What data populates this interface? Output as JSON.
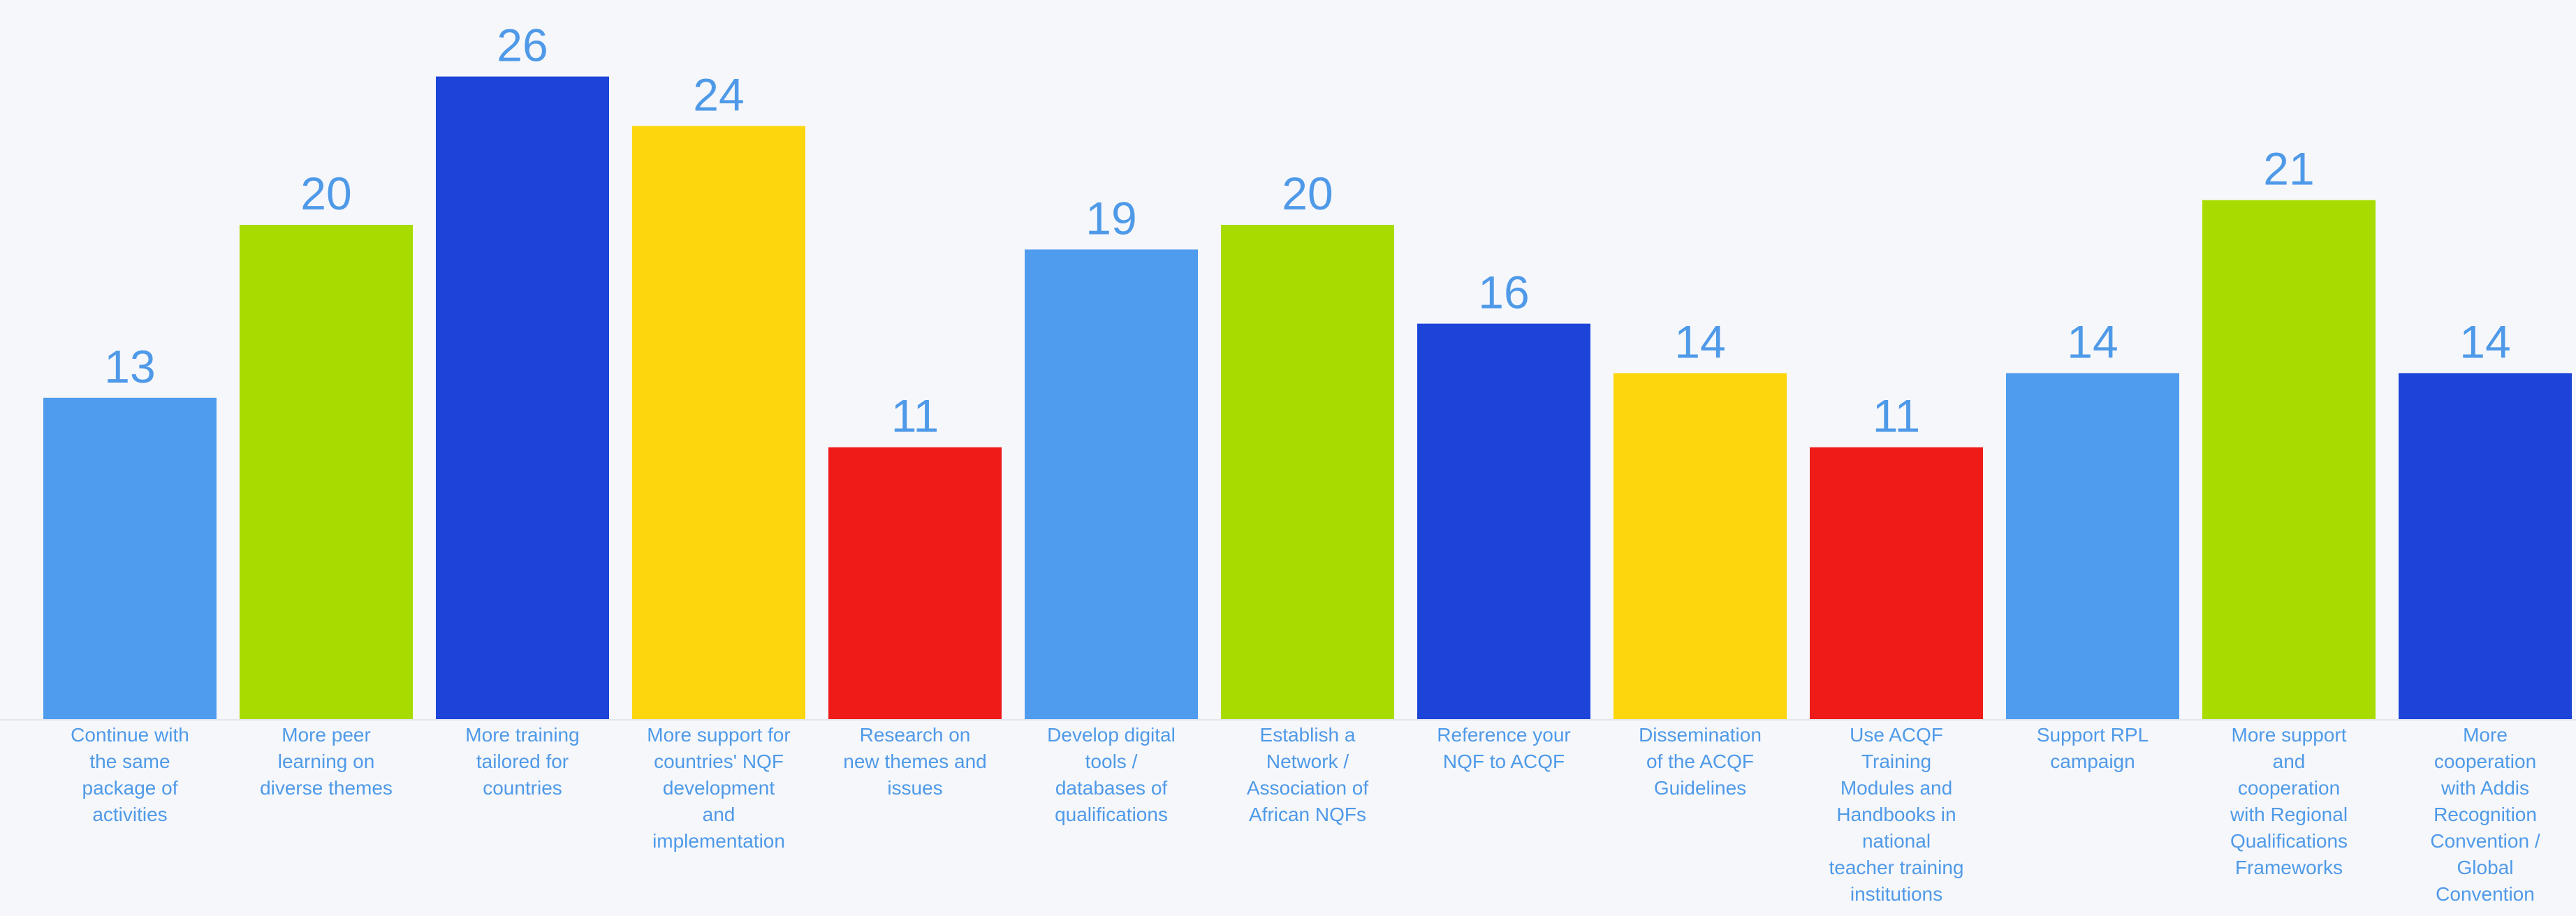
{
  "chart_data": {
    "type": "bar",
    "title": "",
    "xlabel": "",
    "ylabel": "",
    "ylim": [
      0,
      26
    ],
    "grid": false,
    "legend": "none",
    "categories": [
      "Continue with the same package of activities",
      "More peer learning on diverse themes",
      "More training tailored for countries",
      "More support for countries' NQF development and implementation",
      "Research on new themes and issues",
      "Develop digital tools / databases of qualifications",
      "Establish a Network / Association of African NQFs",
      "Reference your NQF to ACQF",
      "Dissemination of the ACQF Guidelines",
      "Use ACQF Training Modules and Handbooks in national teacher training institutions",
      "Support RPL campaign",
      "More support and cooperation with Regional Qualifications Frameworks",
      "More cooperation with Addis Recognition Convention / Global Convention"
    ],
    "category_lines": [
      [
        "Continue with",
        "the same",
        "package of",
        "activities"
      ],
      [
        "More peer",
        "learning on",
        "diverse themes"
      ],
      [
        "More training",
        "tailored for",
        "countries"
      ],
      [
        "More support for",
        "countries' NQF",
        "development",
        "and",
        "implementation"
      ],
      [
        "Research on",
        "new themes and",
        "issues"
      ],
      [
        "Develop digital",
        "tools /",
        "databases of",
        "qualifications"
      ],
      [
        "Establish a",
        "Network /",
        "Association of",
        "African NQFs"
      ],
      [
        "Reference your",
        "NQF to ACQF"
      ],
      [
        "Dissemination",
        "of the ACQF",
        "Guidelines"
      ],
      [
        "Use ACQF",
        "Training",
        "Modules and",
        "Handbooks in",
        "national",
        "teacher training",
        "institutions"
      ],
      [
        "Support RPL",
        "campaign"
      ],
      [
        "More support",
        "and",
        "cooperation",
        "with Regional",
        "Qualifications",
        "Frameworks"
      ],
      [
        "More",
        "cooperation",
        "with Addis",
        "Recognition",
        "Convention /",
        "Global",
        "Convention"
      ]
    ],
    "values": [
      13,
      20,
      26,
      24,
      11,
      19,
      20,
      16,
      14,
      11,
      14,
      21,
      14
    ],
    "colors": [
      "#4f9cef",
      "#a8dc00",
      "#1c44d8",
      "#fdd60e",
      "#ee1b19",
      "#4f9cef",
      "#a8dc00",
      "#1c44d8",
      "#fdd60e",
      "#ee1b19",
      "#4f9cef",
      "#a8dc00",
      "#1c44d8"
    ],
    "label_color": "#4f9ae8"
  }
}
